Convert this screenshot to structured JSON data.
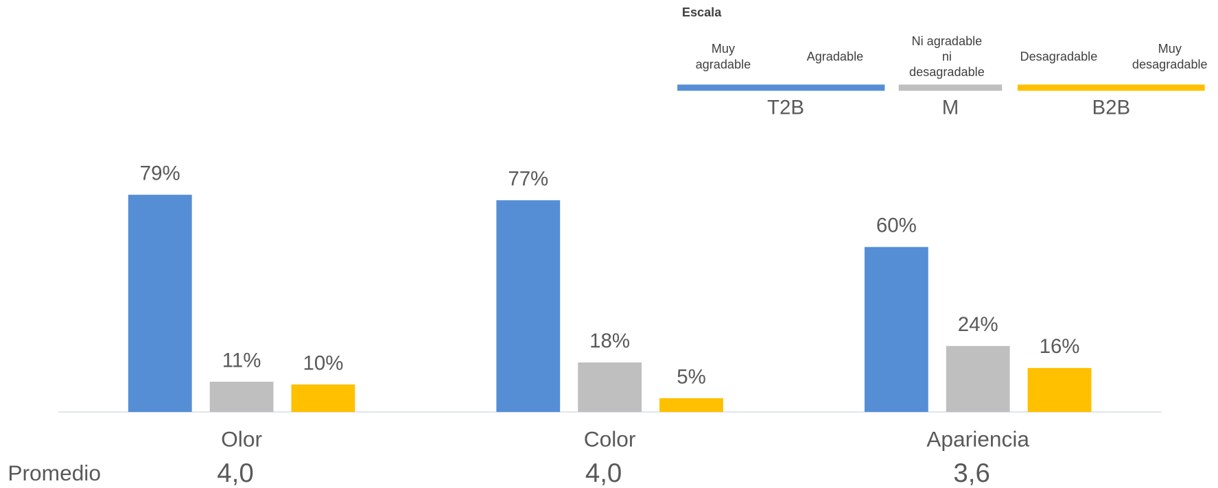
{
  "chart_data": {
    "type": "bar",
    "categories": [
      "Olor",
      "Color",
      "Apariencia"
    ],
    "series": [
      {
        "name": "T2B",
        "color": "#558ed5",
        "values": [
          79,
          77,
          60
        ],
        "value_labels": [
          "79%",
          "77%",
          "60%"
        ]
      },
      {
        "name": "M",
        "color": "#bfbfbf",
        "values": [
          11,
          18,
          24
        ],
        "value_labels": [
          "11%",
          "18%",
          "24%"
        ]
      },
      {
        "name": "B2B",
        "color": "#ffc000",
        "values": [
          10,
          5,
          16
        ],
        "value_labels": [
          "10%",
          "5%",
          "16%"
        ]
      }
    ],
    "legend_title": "Escala",
    "scale": [
      [
        "Muy",
        "agradable"
      ],
      [
        "Agradable"
      ],
      [
        "Ni agradable",
        "ni",
        "desagradable"
      ],
      [
        "Desagradable"
      ],
      [
        "Muy",
        "desagradable"
      ]
    ],
    "average_label": "Promedio",
    "averages": [
      "4,0",
      "4,0",
      "3,6"
    ]
  }
}
